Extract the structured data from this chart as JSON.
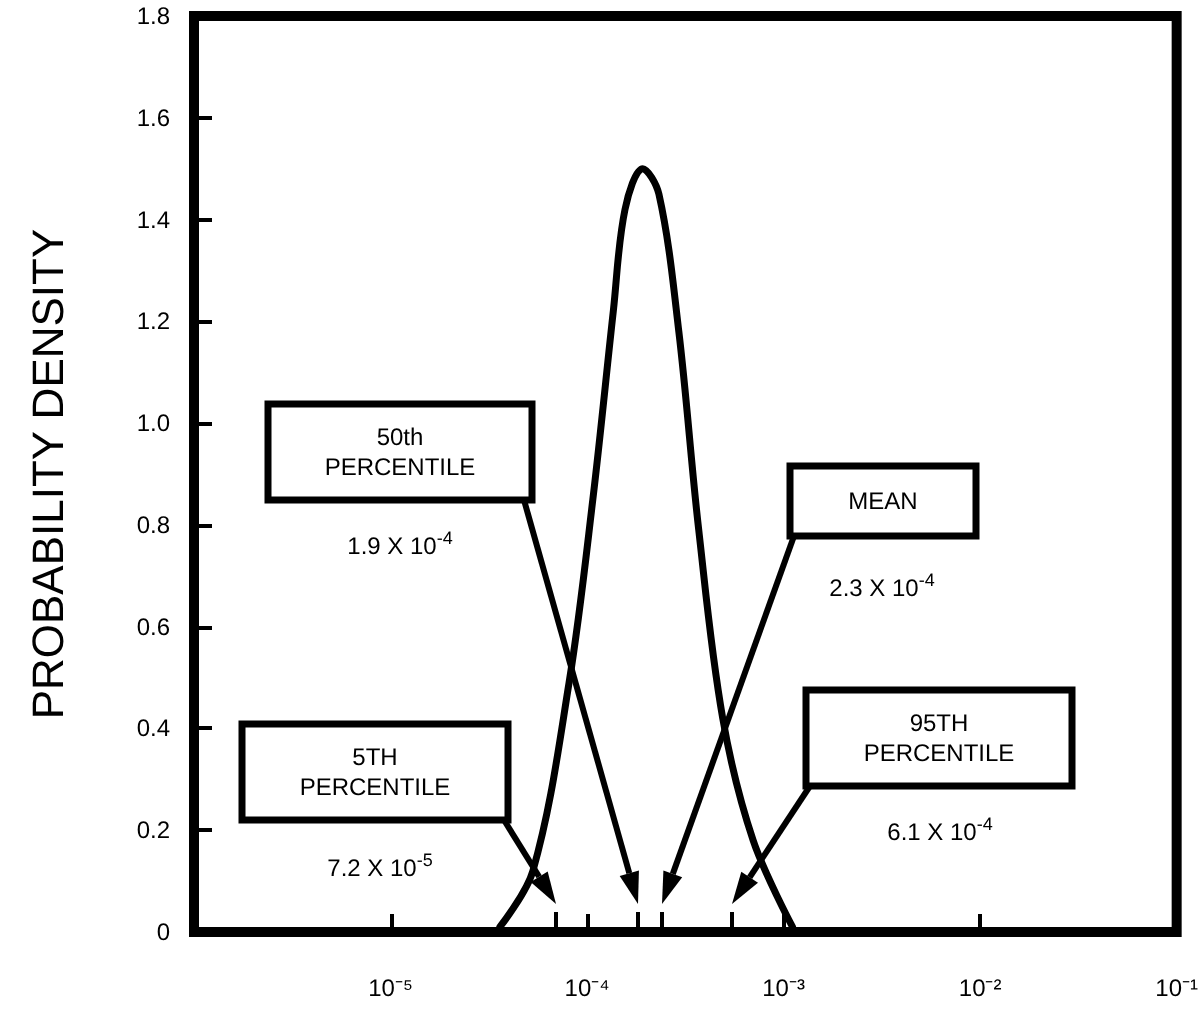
{
  "chart_data": {
    "type": "line",
    "ylabel": "PROBABILITY DENSITY",
    "x": [
      3.6e-05,
      5.3e-05,
      8.1e-05,
      0.000107,
      0.000136,
      0.000156,
      0.000192,
      0.000232,
      0.000293,
      0.00037,
      0.00049,
      0.0007,
      0.00111
    ],
    "series": [
      {
        "color": "#000000",
        "values": [
          0.01,
          0.12,
          0.49,
          0.85,
          1.22,
          1.42,
          1.5,
          1.45,
          1.18,
          0.79,
          0.42,
          0.18,
          0.01
        ]
      }
    ],
    "log": "x",
    "xlim": [
      1e-06,
      0.1
    ],
    "xticks": [
      {
        "value": 1e-05,
        "label": "10⁻⁵"
      },
      {
        "value": 0.0001,
        "label": "10⁻⁴"
      },
      {
        "value": 0.001,
        "label": "10⁻³"
      },
      {
        "value": 0.01,
        "label": "10⁻²"
      },
      {
        "value": 0.1,
        "label": "10⁻¹"
      }
    ],
    "ylim": [
      0,
      1.8
    ],
    "yticks": [
      {
        "value": 0,
        "label": "0"
      },
      0.2,
      0.4,
      0.6,
      0.8,
      {
        "value": 1,
        "label": "1.0"
      },
      1.2,
      1.4,
      1.6,
      1.8
    ],
    "grid": false,
    "marker": "none",
    "line_style": "solid",
    "annotations": [
      "50th PERCENTILE",
      "MEAN",
      "5TH PERCENTILE",
      "95TH PERCENTILE",
      "1.9 X 10$^{-4}$",
      "2.3 X 10$^{-4}$",
      "7.2 X 10$^{-5}$",
      "6.1 X 10$^{-4}$"
    ]
  }
}
